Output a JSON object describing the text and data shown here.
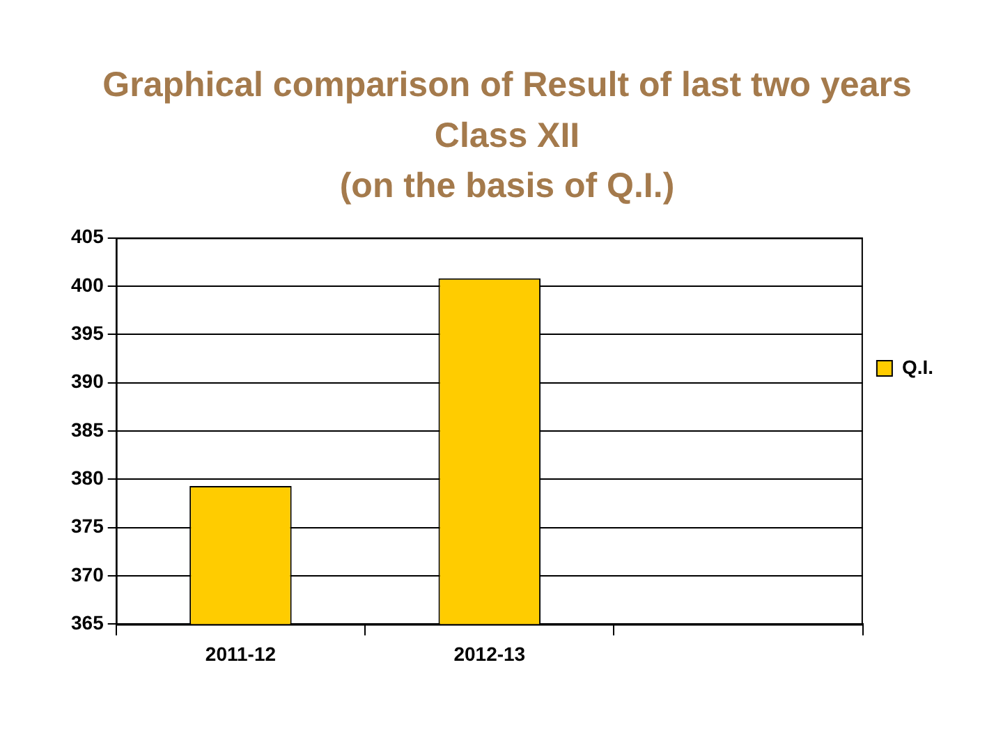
{
  "chart_data": {
    "type": "bar",
    "title": "Graphical comparison of Result of last two years\nClass XII\n(on the basis of Q.I.)",
    "categories": [
      "2011-12",
      "2012-13",
      null
    ],
    "series": [
      {
        "name": "Q.I.",
        "color": "#ffcc00",
        "values": [
          379.3,
          400.8,
          null
        ]
      }
    ],
    "ylim": [
      365,
      405
    ],
    "yticks": [
      365,
      370,
      375,
      380,
      385,
      390,
      395,
      400,
      405
    ],
    "grid": "y",
    "legend": "right"
  }
}
